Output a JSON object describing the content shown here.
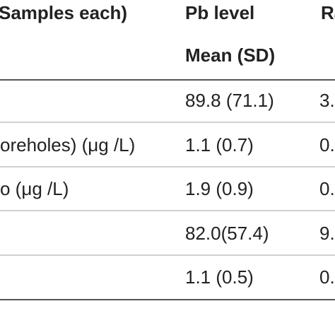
{
  "table": {
    "header": {
      "col1": "Samples each)",
      "col2_line1": "Pb level",
      "col2_line2": "Mean (SD)",
      "col3": "Ra"
    },
    "rows": [
      {
        "label": "",
        "value": "89.8 (71.1)",
        "next": "3."
      },
      {
        "label": "oreholes) (μg /L)",
        "value": "1.1 (0.7)",
        "next": "0."
      },
      {
        "label": "o (μg /L)",
        "value": "1.9 (0.9)",
        "next": "0."
      },
      {
        "label": "",
        "value": "82.0(57.4)",
        "next": "9."
      },
      {
        "label": "",
        "value": "1.1 (0.5)",
        "next": "0."
      }
    ]
  }
}
